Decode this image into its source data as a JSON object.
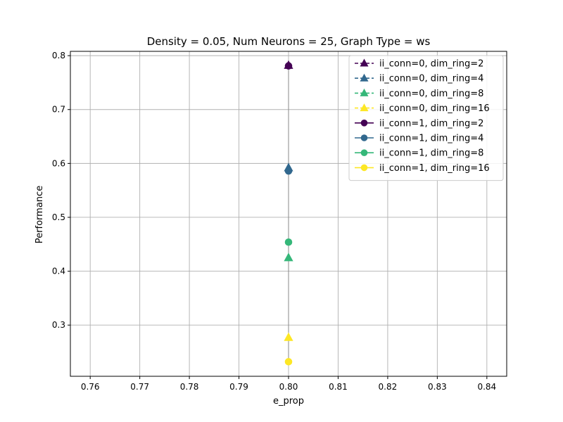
{
  "chart_data": {
    "type": "line",
    "title": "Density = 0.05, Num Neurons = 25, Graph Type = ws",
    "xlabel": "e_prop",
    "ylabel": "Performance",
    "xlim": [
      0.756,
      0.844
    ],
    "ylim": [
      0.205,
      0.808
    ],
    "x_ticks": [
      0.76,
      0.77,
      0.78,
      0.79,
      0.8,
      0.81,
      0.82,
      0.83,
      0.84
    ],
    "y_ticks": [
      0.3,
      0.4,
      0.5,
      0.6,
      0.7,
      0.8
    ],
    "grid": true,
    "legend_position": "top-right",
    "series": [
      {
        "name": "ii_conn=0, dim_ring=2",
        "color": "#440154",
        "marker": "triangle",
        "linestyle": "dashed",
        "x": [
          0.8
        ],
        "y": [
          0.782
        ]
      },
      {
        "name": "ii_conn=0, dim_ring=4",
        "color": "#31688e",
        "marker": "triangle",
        "linestyle": "dashed",
        "x": [
          0.8
        ],
        "y": [
          0.592
        ]
      },
      {
        "name": "ii_conn=0, dim_ring=8",
        "color": "#35b779",
        "marker": "triangle",
        "linestyle": "dashed",
        "x": [
          0.8
        ],
        "y": [
          0.425
        ]
      },
      {
        "name": "ii_conn=0, dim_ring=16",
        "color": "#fde725",
        "marker": "triangle",
        "linestyle": "dashed",
        "x": [
          0.8
        ],
        "y": [
          0.277
        ]
      },
      {
        "name": "ii_conn=1, dim_ring=2",
        "color": "#440154",
        "marker": "circle",
        "linestyle": "solid",
        "x": [
          0.8
        ],
        "y": [
          0.781
        ]
      },
      {
        "name": "ii_conn=1, dim_ring=4",
        "color": "#31688e",
        "marker": "circle",
        "linestyle": "solid",
        "x": [
          0.8
        ],
        "y": [
          0.586
        ]
      },
      {
        "name": "ii_conn=1, dim_ring=8",
        "color": "#35b779",
        "marker": "circle",
        "linestyle": "solid",
        "x": [
          0.8
        ],
        "y": [
          0.454
        ]
      },
      {
        "name": "ii_conn=1, dim_ring=16",
        "color": "#fde725",
        "marker": "circle",
        "linestyle": "solid",
        "x": [
          0.8
        ],
        "y": [
          0.232
        ]
      }
    ]
  }
}
